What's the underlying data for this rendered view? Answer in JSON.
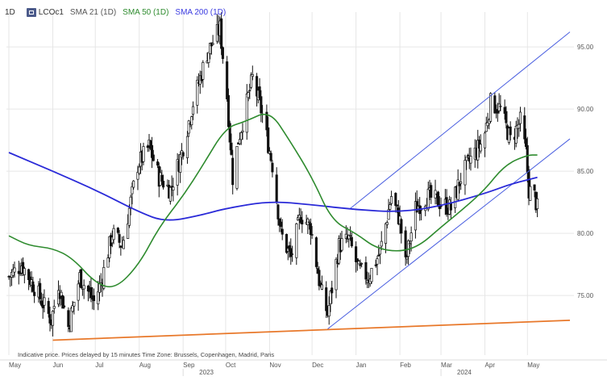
{
  "legend": {
    "interval": "1D",
    "symbol": "LCOc1",
    "sma21": "SMA 21 (1D)",
    "sma50": "SMA 50 (1D)",
    "sma200": "SMA 200 (1D)"
  },
  "note": "Indicative price. Prices delayed by 15 minutes   Time Zone: Brussels, Copenhagen, Madrid, Paris",
  "colors": {
    "candle": "#111111",
    "sma50": "#2e8b2e",
    "sma200": "#2a2ad8",
    "channel": "#4a5fe0",
    "support": "#e8782a",
    "grid": "#e6e6e6",
    "sma21_legend": "#555555"
  },
  "chart_data": {
    "type": "candlestick",
    "y_ticks": [
      "95.00",
      "90.00",
      "85.00",
      "80.00",
      "75.00"
    ],
    "y_tick_values": [
      95,
      90,
      85,
      80,
      75
    ],
    "ylim": [
      70.2,
      97.8
    ],
    "x_months": [
      "May",
      "Jun",
      "Jul",
      "Aug",
      "Sep",
      "Oct",
      "Nov",
      "Dec",
      "Jan",
      "Feb",
      "Mar",
      "Apr",
      "May"
    ],
    "x_years": [
      "2023",
      "2024"
    ],
    "grid": true,
    "price_path": [
      [
        "2023-05-01",
        76.5
      ],
      [
        "2023-05-10",
        77.5
      ],
      [
        "2023-05-20",
        75.5
      ],
      [
        "2023-05-31",
        73.0
      ],
      [
        "2023-06-05",
        76.0
      ],
      [
        "2023-06-12",
        72.5
      ],
      [
        "2023-06-20",
        76.5
      ],
      [
        "2023-06-30",
        74.5
      ],
      [
        "2023-07-05",
        76.0
      ],
      [
        "2023-07-13",
        80.0
      ],
      [
        "2023-07-20",
        79.0
      ],
      [
        "2023-07-31",
        85.5
      ],
      [
        "2023-08-08",
        87.0
      ],
      [
        "2023-08-15",
        84.5
      ],
      [
        "2023-08-23",
        83.5
      ],
      [
        "2023-08-31",
        86.5
      ],
      [
        "2023-09-08",
        90.5
      ],
      [
        "2023-09-18",
        94.5
      ],
      [
        "2023-09-27",
        96.5
      ],
      [
        "2023-10-02",
        91.0
      ],
      [
        "2023-10-06",
        84.5
      ],
      [
        "2023-10-10",
        87.5
      ],
      [
        "2023-10-20",
        92.5
      ],
      [
        "2023-10-27",
        89.5
      ],
      [
        "2023-11-03",
        85.5
      ],
      [
        "2023-11-09",
        80.0
      ],
      [
        "2023-11-16",
        78.0
      ],
      [
        "2023-11-23",
        81.5
      ],
      [
        "2023-11-30",
        80.5
      ],
      [
        "2023-12-07",
        75.5
      ],
      [
        "2023-12-12",
        73.5
      ],
      [
        "2023-12-20",
        79.0
      ],
      [
        "2023-12-27",
        79.5
      ],
      [
        "2024-01-03",
        77.0
      ],
      [
        "2024-01-10",
        76.5
      ],
      [
        "2024-01-18",
        78.5
      ],
      [
        "2024-01-26",
        83.0
      ],
      [
        "2024-02-01",
        81.0
      ],
      [
        "2024-02-05",
        77.5
      ],
      [
        "2024-02-12",
        82.0
      ],
      [
        "2024-02-20",
        83.0
      ],
      [
        "2024-02-29",
        82.5
      ],
      [
        "2024-03-08",
        82.0
      ],
      [
        "2024-03-15",
        84.5
      ],
      [
        "2024-03-22",
        86.0
      ],
      [
        "2024-03-31",
        87.5
      ],
      [
        "2024-04-05",
        90.5
      ],
      [
        "2024-04-12",
        90.0
      ],
      [
        "2024-04-19",
        87.5
      ],
      [
        "2024-04-26",
        89.0
      ],
      [
        "2024-04-30",
        86.5
      ],
      [
        "2024-05-02",
        83.5
      ],
      [
        "2024-05-06",
        83.0
      ],
      [
        "2024-05-08",
        82.0
      ]
    ],
    "sma50": [
      [
        "2023-05-01",
        79.8
      ],
      [
        "2023-05-15",
        79.0
      ],
      [
        "2023-06-01",
        78.8
      ],
      [
        "2023-06-15",
        78.0
      ],
      [
        "2023-07-01",
        76.0
      ],
      [
        "2023-07-15",
        75.5
      ],
      [
        "2023-08-01",
        77.5
      ],
      [
        "2023-08-15",
        80.5
      ],
      [
        "2023-09-01",
        83.0
      ],
      [
        "2023-09-15",
        85.5
      ],
      [
        "2023-10-01",
        88.5
      ],
      [
        "2023-10-15",
        89.0
      ],
      [
        "2023-11-01",
        89.9
      ],
      [
        "2023-11-15",
        87.5
      ],
      [
        "2023-12-01",
        84.5
      ],
      [
        "2023-12-15",
        81.0
      ],
      [
        "2024-01-01",
        80.0
      ],
      [
        "2024-01-15",
        78.8
      ],
      [
        "2024-02-01",
        78.5
      ],
      [
        "2024-02-15",
        79.0
      ],
      [
        "2024-03-01",
        80.5
      ],
      [
        "2024-03-15",
        81.8
      ],
      [
        "2024-04-01",
        83.5
      ],
      [
        "2024-04-15",
        85.5
      ],
      [
        "2024-05-01",
        86.3
      ],
      [
        "2024-05-08",
        86.3
      ]
    ],
    "sma200": [
      [
        "2023-05-01",
        86.5
      ],
      [
        "2023-06-01",
        85.0
      ],
      [
        "2023-07-01",
        83.5
      ],
      [
        "2023-08-01",
        81.7
      ],
      [
        "2023-08-20",
        80.9
      ],
      [
        "2023-09-15",
        81.5
      ],
      [
        "2023-10-01",
        82.0
      ],
      [
        "2023-11-01",
        82.6
      ],
      [
        "2023-12-01",
        82.3
      ],
      [
        "2024-01-01",
        81.9
      ],
      [
        "2024-02-01",
        81.7
      ],
      [
        "2024-03-01",
        82.2
      ],
      [
        "2024-04-01",
        83.2
      ],
      [
        "2024-04-20",
        84.0
      ],
      [
        "2024-05-08",
        84.5
      ]
    ],
    "trendlines": [
      {
        "name": "channel-upper",
        "from": [
          "2023-12-28",
          82.0
        ],
        "to": [
          "2024-05-31",
          96.2
        ]
      },
      {
        "name": "channel-lower",
        "from": [
          "2023-12-12",
          72.3
        ],
        "to": [
          "2024-05-31",
          87.6
        ]
      },
      {
        "name": "support",
        "from": [
          "2023-06-01",
          71.4
        ],
        "to": [
          "2024-05-31",
          73.0
        ]
      }
    ]
  }
}
